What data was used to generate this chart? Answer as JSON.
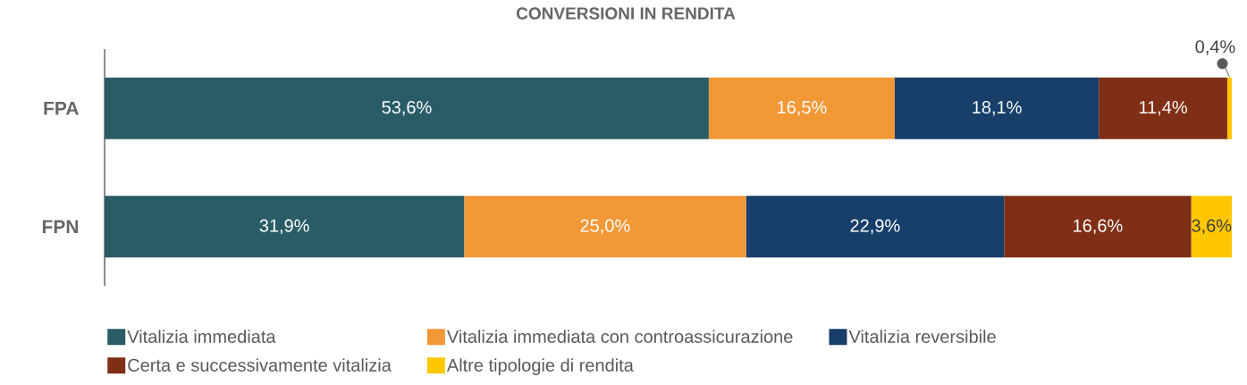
{
  "chart_data": {
    "type": "bar",
    "orientation": "horizontal",
    "stacked": true,
    "title": "CONVERSIONI IN RENDITA",
    "categories": [
      "FPA",
      "FPN"
    ],
    "series": [
      {
        "name": "Vitalizia immediata",
        "color": "#2a5c67",
        "values": [
          53.6,
          31.9
        ],
        "value_labels": [
          "53,6%",
          "31,9%"
        ]
      },
      {
        "name": "Vitalizia immediata con controassicurazione",
        "color": "#f39837",
        "values": [
          16.5,
          25.0
        ],
        "value_labels": [
          "16,5%",
          "25,0%"
        ]
      },
      {
        "name": "Vitalizia reversibile",
        "color": "#173f6a",
        "values": [
          18.1,
          22.9
        ],
        "value_labels": [
          "18,1%",
          "22,9%"
        ]
      },
      {
        "name": "Certa e successivamente vitalizia",
        "color": "#7f2f16",
        "values": [
          11.4,
          16.6
        ],
        "value_labels": [
          "11,4%",
          "16,6%"
        ]
      },
      {
        "name": "Altre tipologie di rendita",
        "color": "#ffc700",
        "values": [
          0.4,
          3.6
        ],
        "value_labels": [
          "0,4%",
          "3,6%"
        ]
      }
    ],
    "xlim": [
      0,
      100
    ],
    "tick_labels": "y",
    "legend": "bottom"
  }
}
